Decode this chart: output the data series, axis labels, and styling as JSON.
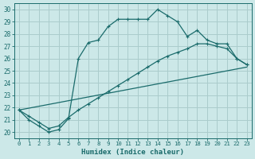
{
  "xlabel": "Humidex (Indice chaleur)",
  "xlim": [
    -0.5,
    23.5
  ],
  "ylim": [
    19.5,
    30.5
  ],
  "xticks": [
    0,
    1,
    2,
    3,
    4,
    5,
    6,
    7,
    8,
    9,
    10,
    11,
    12,
    13,
    14,
    15,
    16,
    17,
    18,
    19,
    20,
    21,
    22,
    23
  ],
  "yticks": [
    20,
    21,
    22,
    23,
    24,
    25,
    26,
    27,
    28,
    29,
    30
  ],
  "bg_color": "#cce8e8",
  "grid_color": "#aacccc",
  "line_color": "#1a6b6b",
  "line1_x": [
    0,
    1,
    2,
    3,
    4,
    5,
    6,
    7,
    8,
    9,
    10,
    11,
    12,
    13,
    14,
    15,
    16,
    17,
    18,
    19,
    20,
    21,
    22,
    23
  ],
  "line1_y": [
    21.8,
    21.0,
    20.5,
    20.0,
    20.2,
    21.1,
    26.0,
    27.3,
    27.5,
    28.6,
    29.2,
    29.2,
    29.2,
    29.2,
    30.0,
    29.5,
    29.0,
    27.8,
    28.3,
    27.5,
    27.2,
    27.2,
    26.0,
    25.5
  ],
  "line2_x": [
    0,
    1,
    2,
    3,
    4,
    5,
    6,
    7,
    8,
    9,
    10,
    11,
    12,
    13,
    14,
    15,
    16,
    17,
    18,
    19,
    20,
    21,
    22,
    23
  ],
  "line2_y": [
    21.8,
    21.3,
    20.8,
    20.3,
    20.5,
    21.2,
    21.8,
    22.3,
    22.8,
    23.3,
    23.8,
    24.3,
    24.8,
    25.3,
    25.8,
    26.2,
    26.5,
    26.8,
    27.2,
    27.2,
    27.0,
    26.8,
    26.0,
    25.5
  ],
  "line3_x": [
    0,
    23
  ],
  "line3_y": [
    21.8,
    25.3
  ]
}
